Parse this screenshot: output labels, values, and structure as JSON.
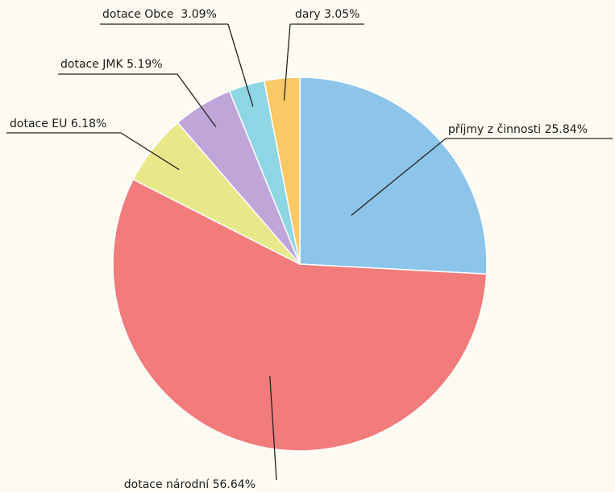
{
  "chart_data": {
    "type": "pie",
    "title": "",
    "legend": "none",
    "slices": [
      {
        "name": "příjmy z činnosti",
        "value": 25.84,
        "label": "příjmy z činnosti 25.84%",
        "color": "#8cc4ea"
      },
      {
        "name": "dotace národní",
        "value": 56.64,
        "label": "dotace národní 56.64%",
        "color": "#f27b7b"
      },
      {
        "name": "dotace EU",
        "value": 6.18,
        "label": "dotace EU 6.18%",
        "color": "#e8e88a"
      },
      {
        "name": "dotace JMK",
        "value": 5.19,
        "label": "dotace JMK 5.19%",
        "color": "#c0a6d8"
      },
      {
        "name": "dotace Obce",
        "value": 3.09,
        "label": "dotace Obce  3.09%",
        "color": "#8ed6e4"
      },
      {
        "name": "dary",
        "value": 3.05,
        "label": "dary 3.05%",
        "color": "#fbc866"
      }
    ]
  }
}
